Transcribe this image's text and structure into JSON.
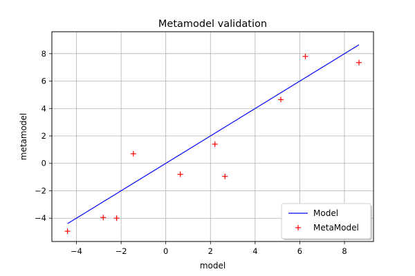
{
  "chart_data": {
    "type": "line+scatter",
    "title": "Metamodel validation",
    "xlabel": "model",
    "ylabel": "metamodel",
    "xlim": [
      -5.1,
      9.3
    ],
    "ylim": [
      -5.7,
      9.6
    ],
    "xticks": [
      -4,
      -2,
      0,
      2,
      4,
      6,
      8
    ],
    "yticks": [
      -4,
      -2,
      0,
      2,
      4,
      6,
      8
    ],
    "xtick_labels": [
      "−4",
      "−2",
      "0",
      "2",
      "4",
      "6",
      "8"
    ],
    "ytick_labels": [
      "−4",
      "−2",
      "0",
      "2",
      "4",
      "6",
      "8"
    ],
    "grid": true,
    "legend": {
      "position": "lower-right",
      "entries": [
        {
          "label": "Model",
          "marker": "line",
          "color": "#0000ff"
        },
        {
          "label": "MetaModel",
          "marker": "plus",
          "color": "#ff0000"
        }
      ]
    },
    "series": [
      {
        "name": "Model",
        "kind": "line",
        "color": "#0000ff",
        "x": [
          -4.4,
          8.65
        ],
        "y": [
          -4.4,
          8.65
        ]
      },
      {
        "name": "MetaModel",
        "kind": "scatter",
        "color": "#ff0000",
        "x": [
          -4.4,
          -2.8,
          -2.2,
          -1.45,
          0.65,
          2.2,
          2.65,
          5.15,
          6.25,
          8.65
        ],
        "y": [
          -4.95,
          -3.95,
          -4.0,
          0.7,
          -0.8,
          1.4,
          -0.95,
          4.65,
          7.8,
          7.35
        ]
      }
    ]
  }
}
